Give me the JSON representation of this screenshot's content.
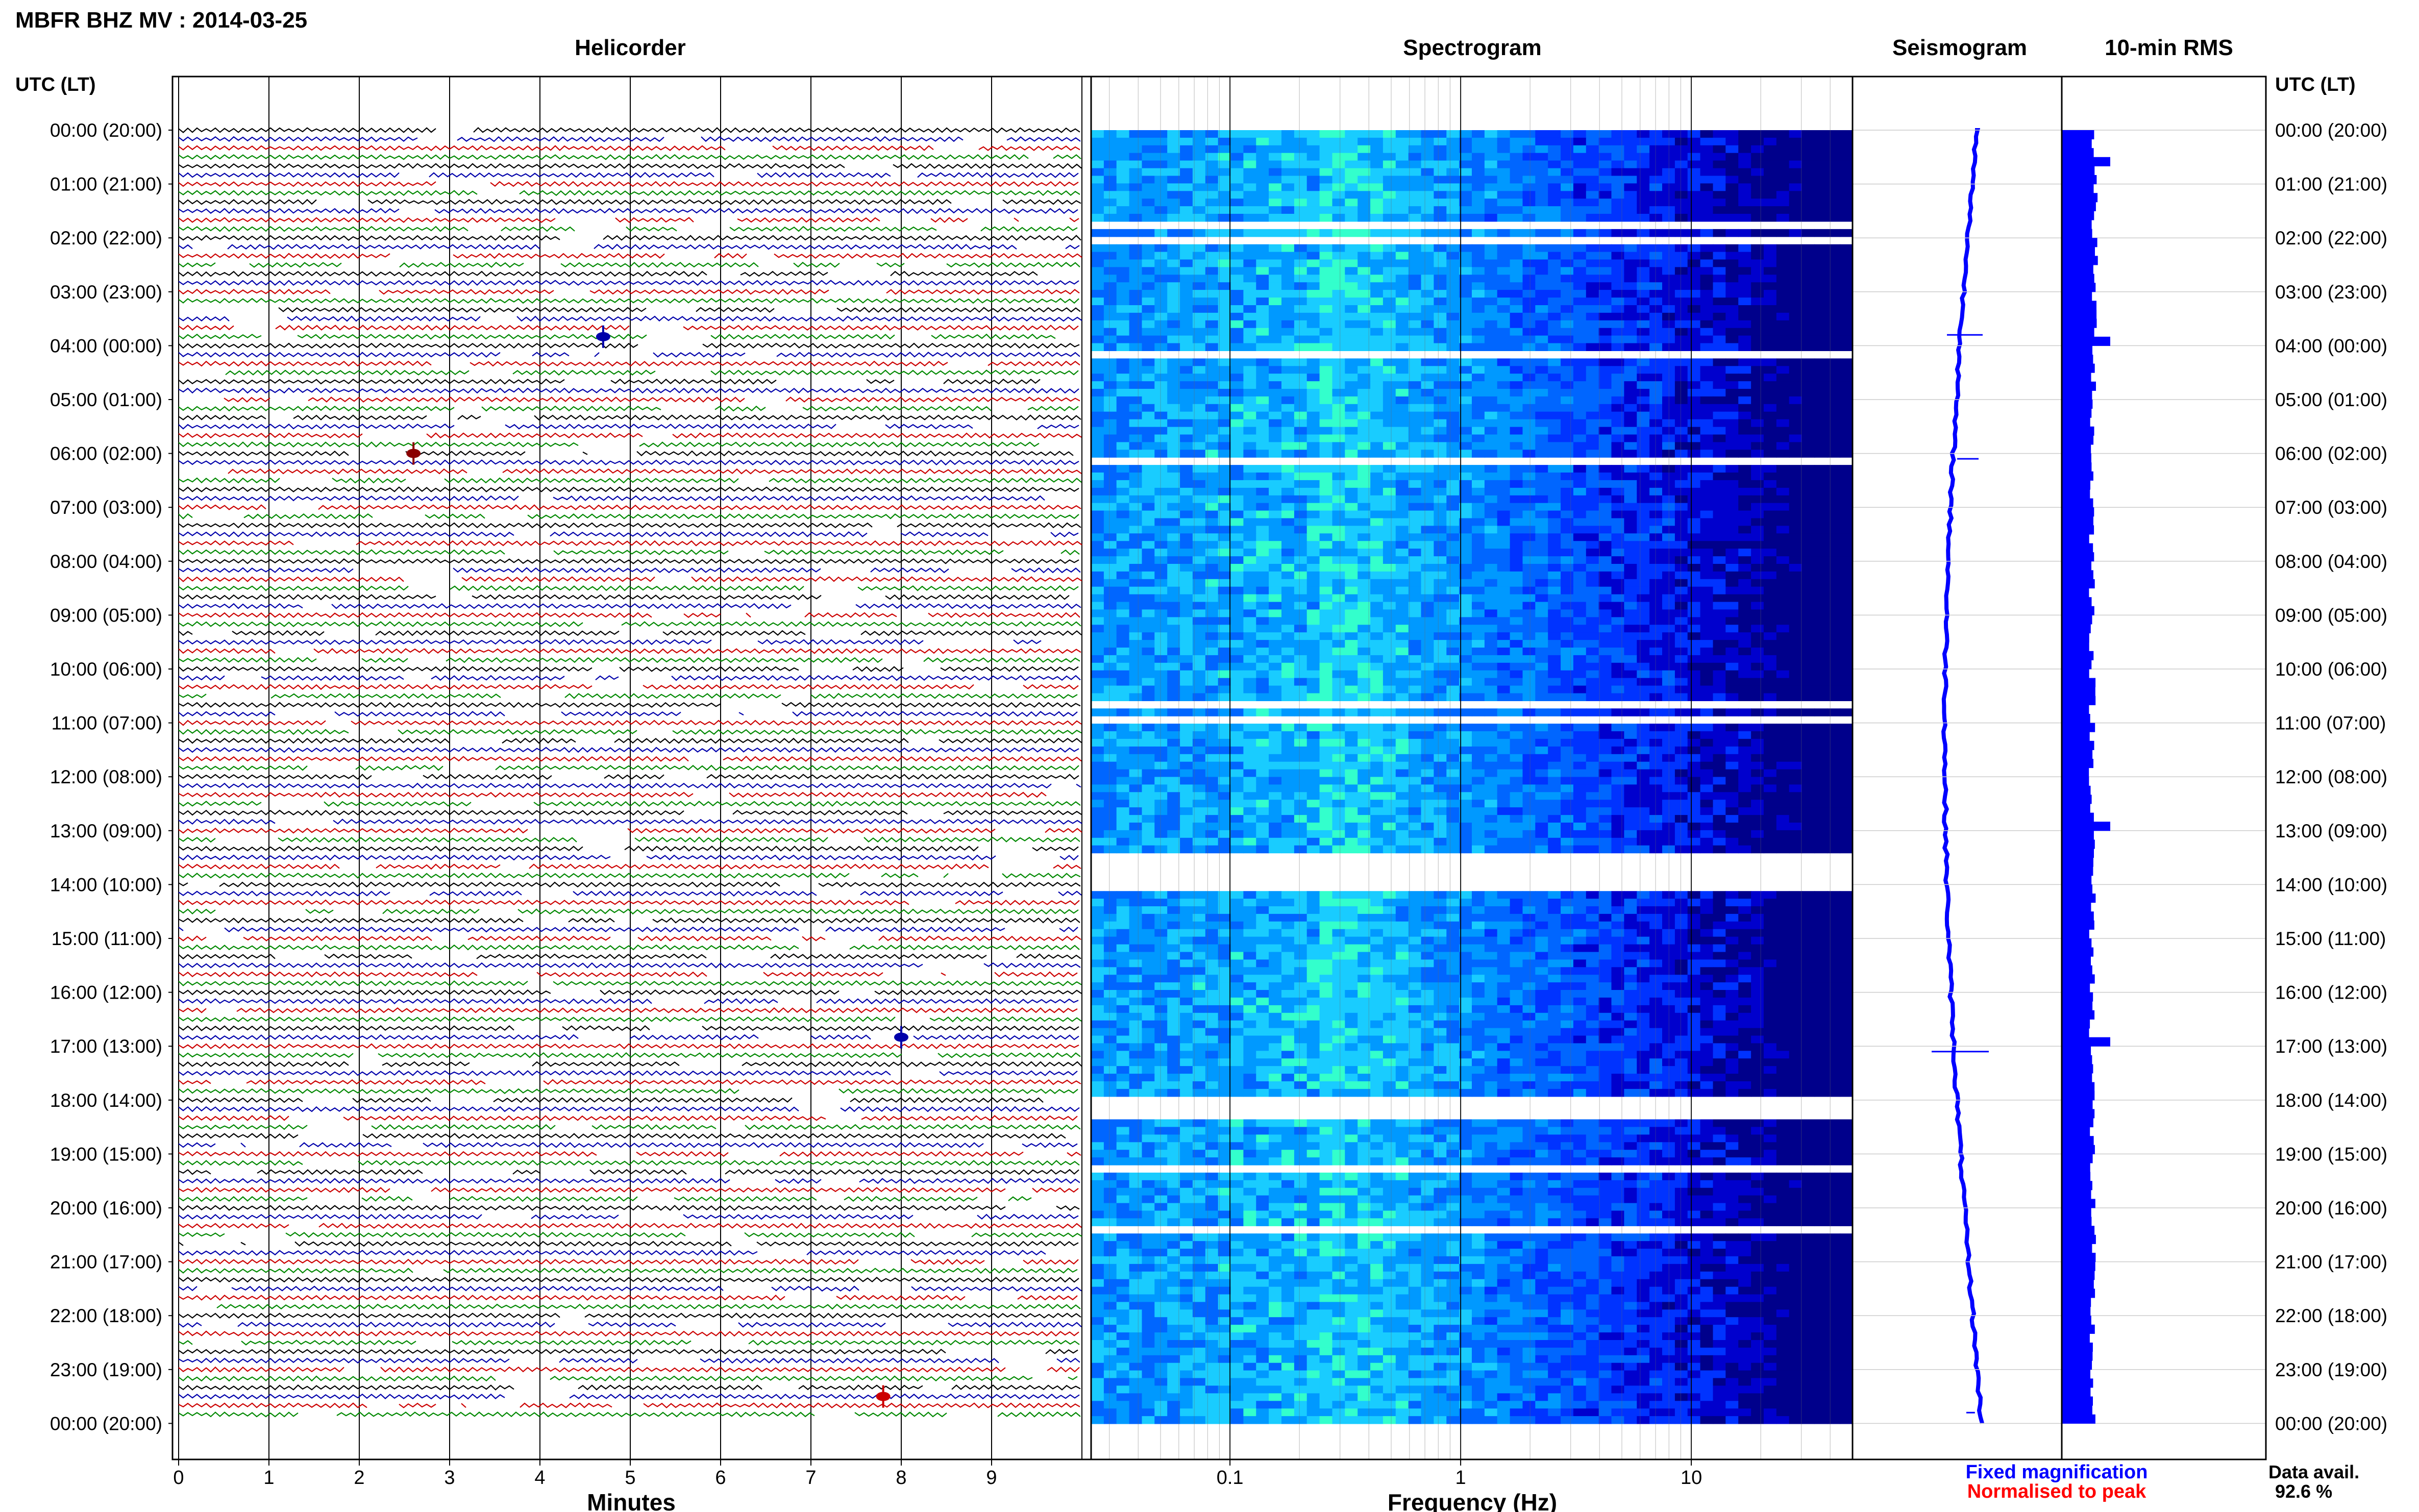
{
  "title": "MBFR BHZ MV : 2014-03-25",
  "panels": {
    "helicorder": "Helicorder",
    "spectrogram": "Spectrogram",
    "seismogram": "Seismogram",
    "rms": "10-min RMS"
  },
  "axis_header_left": "UTC (LT)",
  "axis_header_right": "UTC (LT)",
  "time_labels": [
    "00:00 (20:00)",
    "01:00 (21:00)",
    "02:00 (22:00)",
    "03:00 (23:00)",
    "04:00 (00:00)",
    "05:00 (01:00)",
    "06:00 (02:00)",
    "07:00 (03:00)",
    "08:00 (04:00)",
    "09:00 (05:00)",
    "10:00 (06:00)",
    "11:00 (07:00)",
    "12:00 (08:00)",
    "13:00 (09:00)",
    "14:00 (10:00)",
    "15:00 (11:00)",
    "16:00 (12:00)",
    "17:00 (13:00)",
    "18:00 (14:00)",
    "19:00 (15:00)",
    "20:00 (16:00)",
    "21:00 (17:00)",
    "22:00 (18:00)",
    "23:00 (19:00)",
    "00:00 (20:00)"
  ],
  "x_labels": {
    "helicorder": "Minutes",
    "spectrogram": "Frequency (Hz)"
  },
  "legend": {
    "fixed": "Fixed magnification",
    "normalised": "Normalised to peak",
    "fixed_color": "#0000ff",
    "normalised_color": "#ff0000"
  },
  "data_avail": {
    "label": "Data avail.",
    "value": "92.6 %"
  },
  "colors": {
    "trace_cycle": [
      "#000000",
      "#0000aa",
      "#cc0000",
      "#008800"
    ],
    "rms_bar": "#0000ff",
    "seismogram": "#0000ff"
  },
  "chart_data": [
    {
      "type": "line",
      "name": "Helicorder",
      "xlabel": "Minutes",
      "x_ticks": [
        "0",
        "1",
        "2",
        "3",
        "4",
        "5",
        "6",
        "7",
        "8",
        "9"
      ],
      "xlim": [
        0,
        10
      ],
      "rows_per_hour": 6,
      "hours": 24,
      "events": [
        {
          "time": "03:50",
          "minute": 4.7,
          "color": "#0000aa"
        },
        {
          "time": "06:00",
          "minute": 2.6,
          "color": "#8b0000"
        },
        {
          "time": "16:50",
          "minute": 8.0,
          "color": "#0000aa"
        },
        {
          "time": "23:30",
          "minute": 7.8,
          "color": "#cc0000"
        }
      ]
    },
    {
      "type": "heatmap",
      "name": "Spectrogram",
      "xlabel": "Frequency (Hz)",
      "x_scale": "log",
      "xlim": [
        0.025,
        50
      ],
      "x_ticks": [
        "0.1",
        "1",
        "10"
      ],
      "peak_band_hz": [
        0.15,
        0.35
      ],
      "gap_start": "13:30",
      "gap_end": "14:00"
    },
    {
      "type": "line",
      "name": "Seismogram",
      "trend": "slow drift left then right"
    },
    {
      "type": "bar",
      "name": "10-min RMS",
      "bins": 144,
      "spikes": [
        "00:30",
        "03:50",
        "12:50",
        "16:50"
      ]
    }
  ]
}
